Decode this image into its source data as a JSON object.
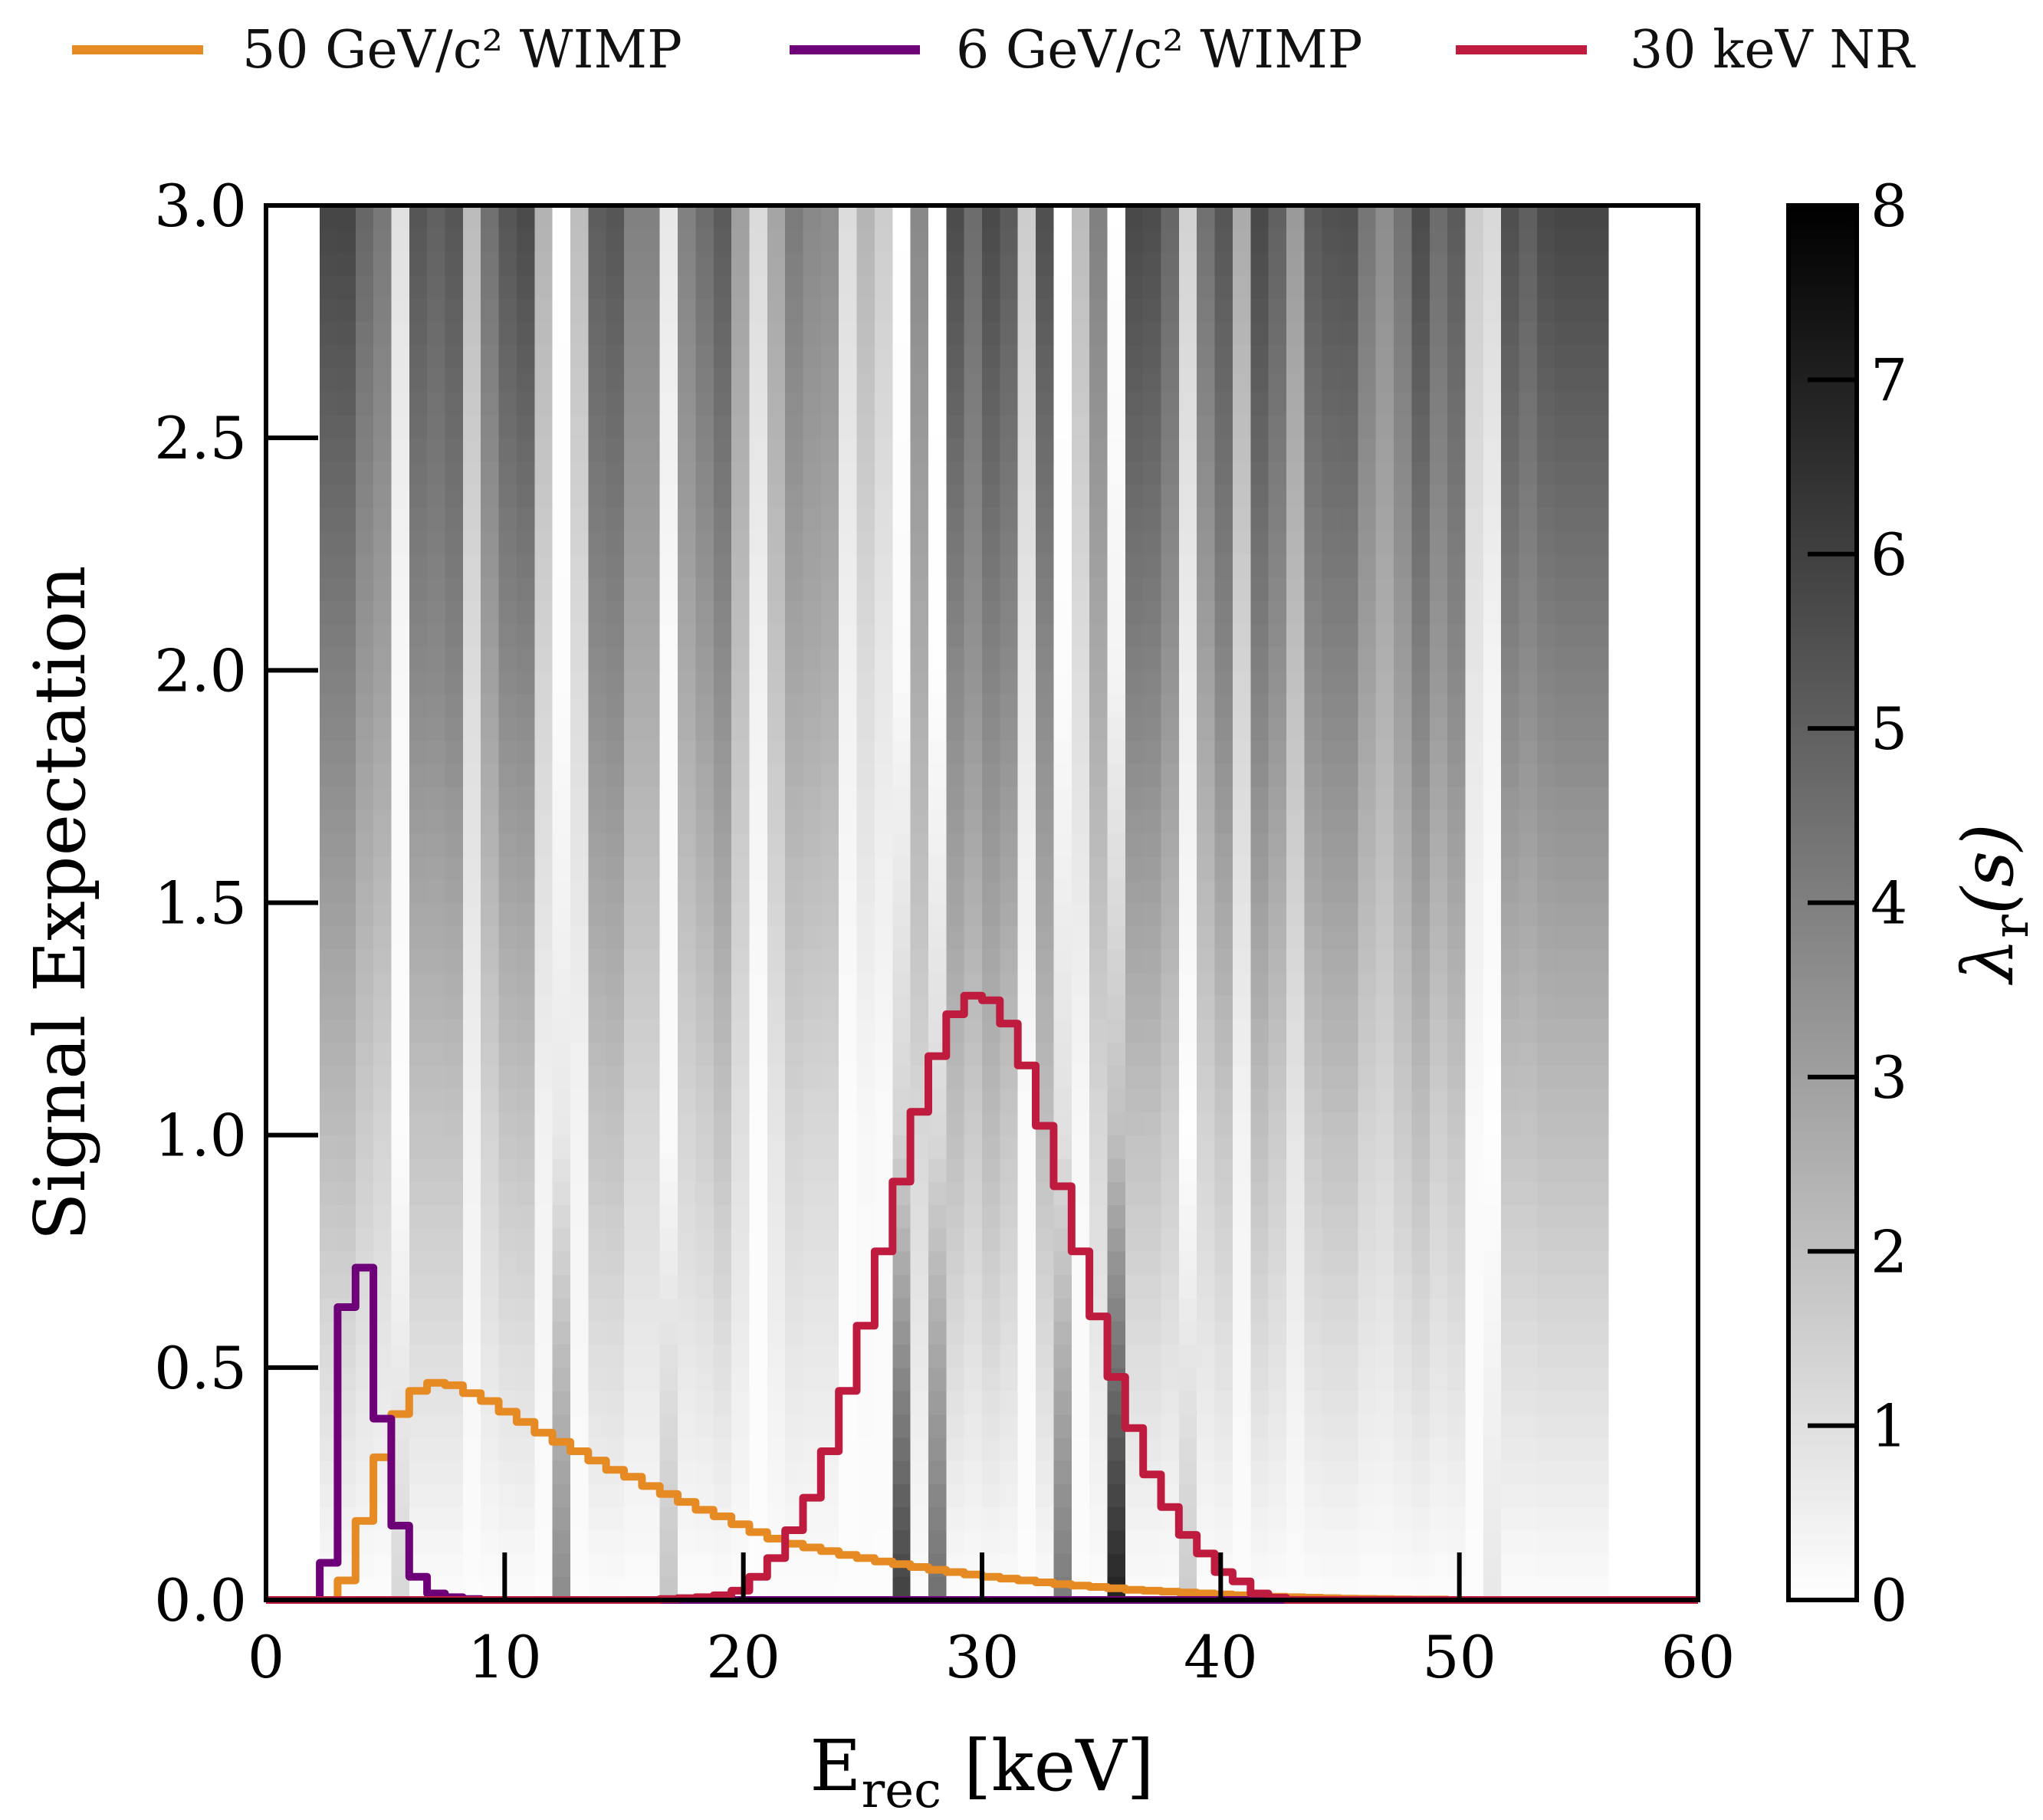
{
  "chart_data": {
    "type": "heatmap",
    "title": "",
    "xlabel": {
      "main": "E",
      "sub": "rec",
      "suffix": " [keV]"
    },
    "ylabel": "Signal Expectation",
    "xlim": [
      0,
      60
    ],
    "ylim": [
      0,
      3.0
    ],
    "xticks": [
      "0",
      "10",
      "20",
      "30",
      "40",
      "50",
      "60"
    ],
    "yticks": [
      "0.0",
      "0.5",
      "1.0",
      "1.5",
      "2.0",
      "2.5",
      "3.0"
    ],
    "grid": false,
    "legend_placement": "top",
    "colorbar": {
      "label": {
        "main": "λ",
        "sub": "r",
        "suffix": "(s)"
      },
      "range": [
        0,
        8
      ],
      "ticks": [
        "0",
        "1",
        "2",
        "3",
        "4",
        "5",
        "6",
        "7",
        "8"
      ],
      "colormap": "greys"
    },
    "heatmap": {
      "x_start": 2.25,
      "bin_width": 0.75,
      "s_samples": [
        0,
        1,
        2,
        3
      ],
      "columns": [
        [
          0.1,
          2.07,
          3.98,
          5.84
        ],
        [
          0.1,
          2.1,
          3.98,
          5.87
        ],
        [
          0.1,
          1.6,
          3.23,
          4.8
        ],
        [
          0.1,
          1.35,
          2.98,
          4.27
        ],
        [
          1.22,
          0.09,
          0.22,
          0.97
        ],
        [
          0.1,
          1.85,
          3.73,
          5.33
        ],
        [
          0.1,
          1.85,
          3.67,
          4.99
        ],
        [
          0.1,
          1.85,
          3.86,
          5.33
        ],
        [
          0.1,
          0.41,
          1.1,
          2.13
        ],
        [
          0.1,
          1.35,
          2.98,
          4.49
        ],
        [
          0.1,
          1.79,
          3.73,
          5.33
        ],
        [
          0.1,
          1.85,
          3.8,
          5.68
        ],
        [
          0.1,
          0.41,
          1.35,
          2.42
        ],
        [
          3.61,
          0.72,
          0.09,
          0.03
        ],
        [
          0.1,
          0.35,
          1.1,
          2.07
        ],
        [
          0.1,
          1.85,
          3.61,
          5.11
        ],
        [
          0.1,
          1.91,
          3.73,
          5.33
        ],
        [
          0.1,
          1.22,
          2.67,
          3.98
        ],
        [
          0.1,
          1.22,
          2.67,
          3.98
        ],
        [
          1.79,
          0.16,
          0.16,
          0.72
        ],
        [
          0.1,
          1.29,
          2.67,
          3.98
        ],
        [
          0.1,
          1.47,
          3.11,
          4.61
        ],
        [
          0.1,
          1.85,
          3.61,
          5.18
        ],
        [
          0.1,
          0.97,
          1.98,
          3.04
        ],
        [
          0.1,
          0.09,
          0.41,
          1.16
        ],
        [
          0.1,
          0.78,
          1.85,
          2.85
        ],
        [
          0.1,
          1.35,
          2.79,
          4.17
        ],
        [
          0.1,
          1.22,
          2.67,
          3.73
        ],
        [
          0.1,
          1.22,
          2.54,
          3.61
        ],
        [
          0.1,
          0.09,
          0.41,
          1.1
        ],
        [
          0.1,
          0.22,
          1.1,
          2.35
        ],
        [
          0.1,
          0.16,
          0.72,
          1.6
        ],
        [
          5.99,
          1.35,
          0.16,
          0.0
        ],
        [
          0.1,
          1.22,
          2.6,
          3.73
        ],
        [
          4.49,
          1.22,
          0.03,
          0.0
        ],
        [
          0.1,
          1.98,
          3.73,
          5.68
        ],
        [
          0.1,
          1.6,
          3.36,
          4.61
        ],
        [
          0.1,
          2.1,
          3.86,
          5.74
        ],
        [
          0.1,
          1.73,
          3.67,
          5.18
        ],
        [
          0.1,
          0.16,
          0.72,
          1.6
        ],
        [
          0.1,
          1.98,
          3.73,
          5.55
        ],
        [
          4.17,
          0.97,
          0.09,
          0.0
        ],
        [
          0.1,
          0.22,
          1.04,
          2.13
        ],
        [
          0.1,
          1.22,
          2.67,
          3.98
        ],
        [
          6.93,
          1.98,
          0.35,
          0.0
        ],
        [
          0.1,
          1.91,
          3.98,
          5.74
        ],
        [
          0.1,
          1.91,
          3.92,
          5.62
        ],
        [
          0.1,
          1.6,
          3.36,
          4.8
        ],
        [
          1.6,
          0.03,
          0.53,
          1.41
        ],
        [
          0.1,
          1.35,
          2.92,
          4.49
        ],
        [
          0.1,
          1.73,
          3.8,
          5.33
        ],
        [
          0.1,
          0.35,
          1.35,
          2.67
        ],
        [
          0.1,
          1.98,
          3.98,
          5.74
        ],
        [
          0.1,
          1.6,
          3.48,
          4.99
        ],
        [
          0.1,
          0.78,
          1.98,
          3.2
        ],
        [
          0.1,
          1.73,
          3.67,
          5.24
        ],
        [
          0.1,
          1.91,
          3.86,
          5.49
        ],
        [
          0.1,
          1.91,
          3.86,
          5.55
        ],
        [
          0.1,
          1.35,
          2.98,
          4.33
        ],
        [
          0.1,
          1.22,
          2.48,
          3.61
        ],
        [
          0.1,
          1.6,
          3.11,
          4.42
        ],
        [
          0.1,
          1.98,
          3.98,
          5.68
        ],
        [
          0.1,
          1.47,
          3.23,
          4.61
        ],
        [
          0.1,
          1.73,
          3.73,
          5.18
        ],
        [
          0.1,
          0.16,
          0.78,
          1.6
        ],
        [
          0.72,
          0.03,
          0.35,
          1.22
        ],
        [
          0.1,
          1.85,
          3.86,
          5.55
        ],
        [
          0.1,
          1.85,
          3.61,
          5.05
        ],
        [
          0.1,
          1.98,
          3.86,
          5.74
        ],
        [
          0.1,
          1.98,
          3.98,
          5.84
        ],
        [
          0.1,
          1.98,
          3.98,
          5.84
        ],
        [
          0.1,
          1.98,
          3.98,
          5.84
        ]
      ]
    },
    "histograms": {
      "bin_start": 0,
      "bin_width": 0.75,
      "series": [
        {
          "name": "50 GeV/c² WIMP",
          "color": "#e68a24",
          "values": [
            0,
            0,
            0,
            0,
            0.042,
            0.17,
            0.307,
            0.4,
            0.45,
            0.467,
            0.462,
            0.445,
            0.428,
            0.405,
            0.383,
            0.36,
            0.34,
            0.32,
            0.3,
            0.28,
            0.265,
            0.245,
            0.228,
            0.211,
            0.194,
            0.18,
            0.163,
            0.146,
            0.132,
            0.121,
            0.113,
            0.105,
            0.097,
            0.09,
            0.083,
            0.077,
            0.071,
            0.065,
            0.06,
            0.055,
            0.05,
            0.046,
            0.042,
            0.038,
            0.034,
            0.031,
            0.028,
            0.025,
            0.022,
            0.02,
            0.018,
            0.016,
            0.014,
            0.012,
            0.01,
            0.009,
            0.007,
            0.006,
            0.005,
            0.004,
            0.003,
            0.0025,
            0.002,
            0.0015,
            0.001,
            0.001,
            0,
            0,
            0,
            0,
            0,
            0,
            0,
            0,
            0,
            0,
            0,
            0,
            0,
            0
          ]
        },
        {
          "name": "6 GeV/c² WIMP",
          "color": "#6d0078",
          "values": [
            0,
            0,
            0,
            0.08,
            0.63,
            0.715,
            0.39,
            0.16,
            0.05,
            0.014,
            0.006,
            0.002,
            0,
            0,
            0,
            0,
            0,
            0,
            0,
            0,
            0,
            0,
            0,
            0,
            0,
            0,
            0,
            0,
            0,
            0,
            0,
            0,
            0,
            0,
            0,
            0,
            0,
            0,
            0,
            0,
            0,
            0,
            0,
            0,
            0,
            0,
            0,
            0,
            0,
            0,
            0,
            0,
            0,
            0,
            0,
            0,
            0,
            0,
            0,
            0,
            0,
            0,
            0,
            0,
            0,
            0,
            0,
            0,
            0,
            0,
            0,
            0,
            0,
            0,
            0,
            0,
            0,
            0,
            0,
            0
          ]
        },
        {
          "name": "30 keV NR",
          "color": "#bf1b3f",
          "values": [
            0,
            0,
            0,
            0,
            0,
            0,
            0,
            0,
            0,
            0,
            0,
            0,
            0,
            0,
            0,
            0,
            0,
            0,
            0,
            0,
            0,
            0,
            0.002,
            0.004,
            0.006,
            0.01,
            0.02,
            0.05,
            0.09,
            0.15,
            0.22,
            0.32,
            0.45,
            0.59,
            0.75,
            0.9,
            1.05,
            1.17,
            1.26,
            1.3,
            1.29,
            1.24,
            1.15,
            1.02,
            0.89,
            0.75,
            0.61,
            0.48,
            0.37,
            0.27,
            0.2,
            0.14,
            0.1,
            0.06,
            0.04,
            0.014,
            0.005,
            0,
            0,
            0,
            0,
            0,
            0,
            0,
            0,
            0,
            0,
            0,
            0,
            0,
            0,
            0,
            0,
            0,
            0,
            0,
            0,
            0,
            0,
            0
          ]
        }
      ]
    }
  }
}
